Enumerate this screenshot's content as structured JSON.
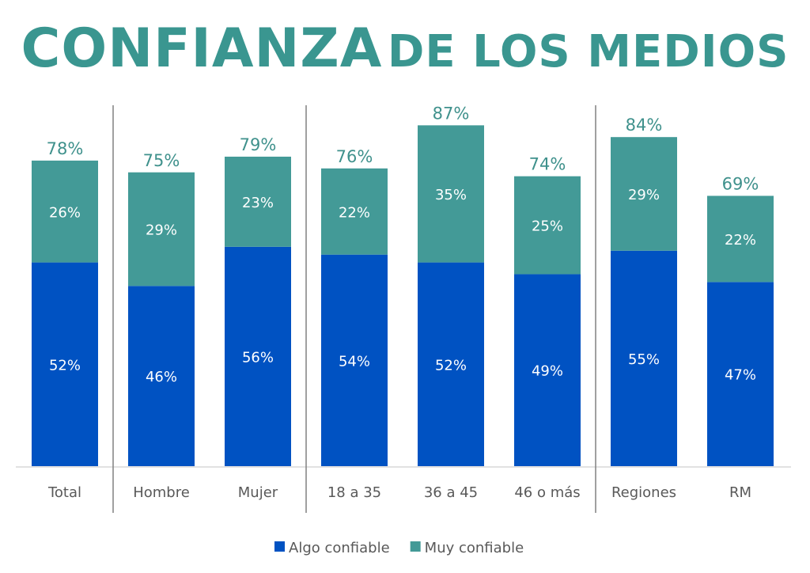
{
  "title_part1": "CONFIANZA",
  "title_part2": "DE LOS MEDIOS",
  "chart_data": {
    "type": "bar",
    "stacked": true,
    "title": "CONFIANZA DE LOS MEDIOS",
    "categories": [
      "Total",
      "Hombre",
      "Mujer",
      "18 a 35",
      "36 a 45",
      "46 o más",
      "Regiones",
      "RM"
    ],
    "groups": [
      [
        "Total"
      ],
      [
        "Hombre",
        "Mujer"
      ],
      [
        "18 a 35",
        "36 a 45",
        "46 o más"
      ],
      [
        "Regiones",
        "RM"
      ]
    ],
    "series": [
      {
        "name": "Algo confiable",
        "color": "#0052c2",
        "values": [
          52,
          46,
          56,
          54,
          52,
          49,
          55,
          47
        ]
      },
      {
        "name": "Muy confiable",
        "color": "#439a97",
        "values": [
          26,
          29,
          23,
          22,
          35,
          25,
          29,
          22
        ]
      }
    ],
    "totals": [
      78,
      75,
      79,
      76,
      87,
      74,
      84,
      69
    ],
    "value_suffix": "%",
    "legend_position": "bottom",
    "grid": false,
    "ylim": [
      0,
      90
    ]
  }
}
